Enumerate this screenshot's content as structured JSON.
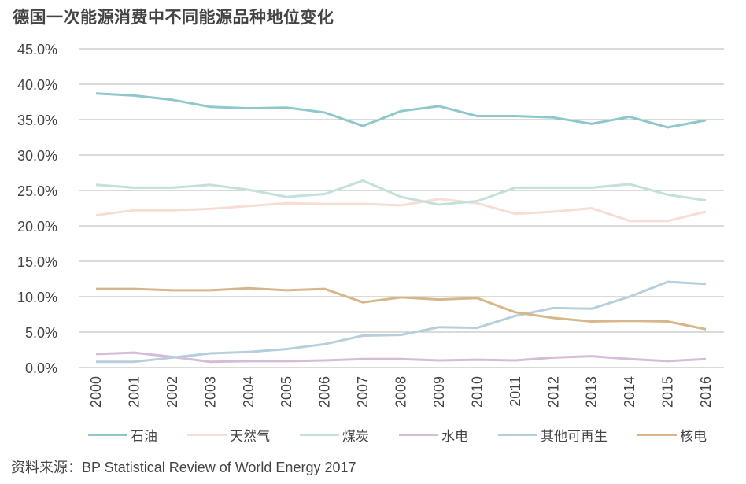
{
  "chart_data": {
    "type": "line",
    "title": "德国一次能源消费中不同能源品种地位变化",
    "xlabel": "",
    "ylabel": "",
    "categories": [
      "2000",
      "2001",
      "2002",
      "2003",
      "2004",
      "2005",
      "2006",
      "2007",
      "2008",
      "2009",
      "2010",
      "2011",
      "2012",
      "2013",
      "2014",
      "2015",
      "2016"
    ],
    "ylim": [
      0,
      45
    ],
    "yticks": [
      "0.0%",
      "5.0%",
      "10.0%",
      "15.0%",
      "20.0%",
      "25.0%",
      "30.0%",
      "35.0%",
      "40.0%",
      "45.0%"
    ],
    "grid": true,
    "legend_position": "bottom",
    "series": [
      {
        "name": "石油",
        "color": "#8ec8cc",
        "values": [
          38.7,
          38.4,
          37.8,
          36.8,
          36.6,
          36.7,
          36.0,
          34.1,
          36.2,
          36.9,
          35.5,
          35.5,
          35.3,
          34.4,
          35.4,
          33.9,
          34.9
        ]
      },
      {
        "name": "天然气",
        "color": "#f8ddd2",
        "values": [
          21.5,
          22.2,
          22.2,
          22.4,
          22.8,
          23.2,
          23.1,
          23.1,
          22.9,
          23.8,
          23.2,
          21.7,
          22.0,
          22.5,
          20.7,
          20.7,
          22.0
        ]
      },
      {
        "name": "煤炭",
        "color": "#c3e0da",
        "values": [
          25.8,
          25.4,
          25.4,
          25.8,
          25.1,
          24.1,
          24.5,
          26.4,
          24.1,
          23.0,
          23.5,
          25.4,
          25.4,
          25.4,
          25.9,
          24.4,
          23.6
        ]
      },
      {
        "name": "水电",
        "color": "#d6bcd8",
        "values": [
          1.9,
          2.1,
          1.5,
          0.8,
          0.9,
          0.9,
          1.0,
          1.2,
          1.2,
          1.0,
          1.1,
          1.0,
          1.4,
          1.6,
          1.2,
          0.9,
          1.2
        ]
      },
      {
        "name": "其他可再生",
        "color": "#b7cfdc",
        "values": [
          0.8,
          0.8,
          1.4,
          2.0,
          2.2,
          2.6,
          3.3,
          4.5,
          4.6,
          5.7,
          5.6,
          7.3,
          8.4,
          8.3,
          10.0,
          12.1,
          11.8
        ]
      },
      {
        "name": "核电",
        "color": "#d9b68a",
        "values": [
          11.1,
          11.1,
          10.9,
          10.9,
          11.2,
          10.9,
          11.1,
          9.2,
          9.9,
          9.6,
          9.8,
          7.8,
          7.0,
          6.5,
          6.6,
          6.5,
          5.4
        ]
      }
    ],
    "source": "资料来源：BP Statistical Review of World Energy 2017"
  }
}
